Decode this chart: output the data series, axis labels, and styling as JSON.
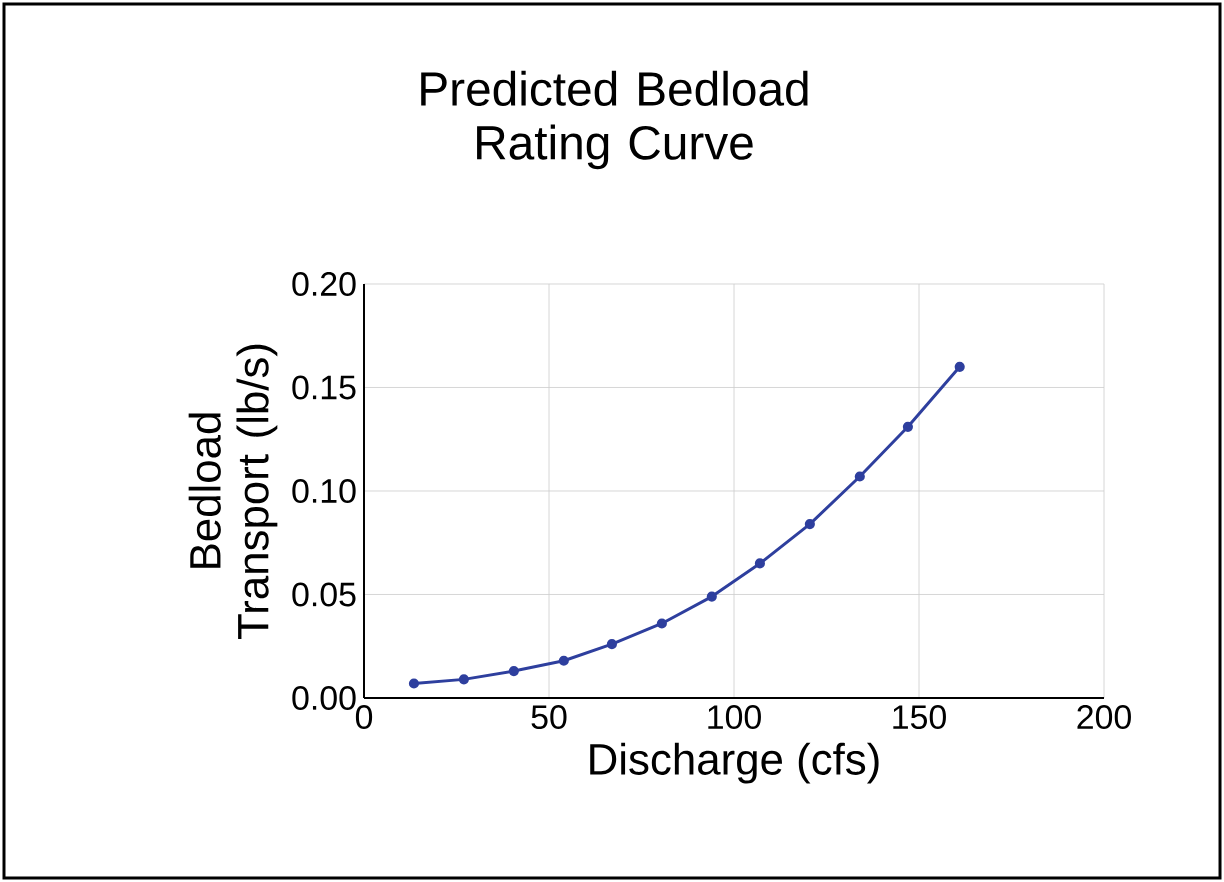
{
  "chart_data": {
    "type": "line",
    "title": "Predicted Bedload Rating Curve",
    "xlabel": "Discharge (cfs)",
    "ylabel": "Bedload Transport (lb/s)",
    "x": [
      13.5,
      27,
      40.5,
      54,
      67,
      80.5,
      94,
      107,
      120.5,
      134,
      147,
      161
    ],
    "series": [
      {
        "color": "#2e3f9e",
        "values": [
          0.007,
          0.009,
          0.013,
          0.018,
          0.026,
          0.036,
          0.049,
          0.065,
          0.084,
          0.107,
          0.131,
          0.16
        ]
      }
    ],
    "xlim": [
      0,
      200
    ],
    "ylim": [
      0,
      0.2
    ],
    "xticks": [
      0,
      50,
      100,
      150,
      200
    ],
    "yticks": [
      {
        "value": 0,
        "label": "0.00"
      },
      {
        "value": 0.05,
        "label": "0.05"
      },
      {
        "value": 0.1,
        "label": "0.10"
      },
      {
        "value": 0.15,
        "label": "0.15"
      },
      {
        "value": 0.2,
        "label": "0.20"
      }
    ],
    "grid": true,
    "marker": "circle",
    "line_style": "solid"
  }
}
